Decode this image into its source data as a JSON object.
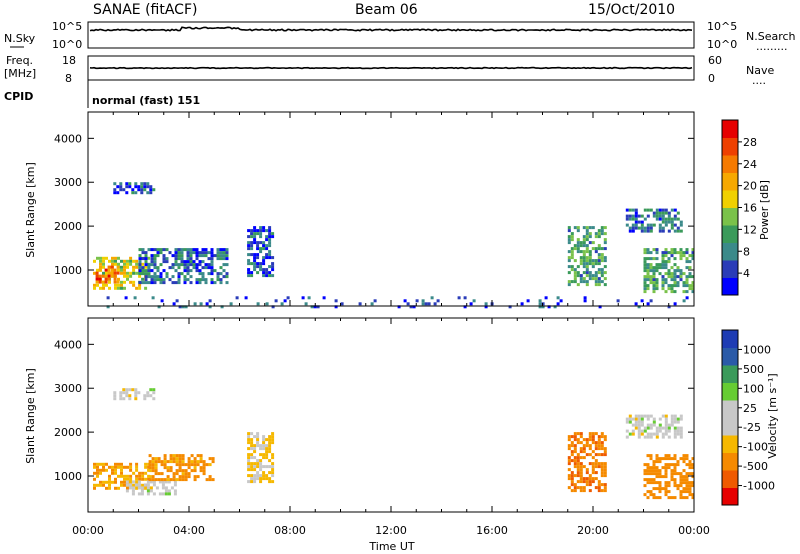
{
  "header": {
    "station": "SANAE (fitACF)",
    "beam": "Beam 06",
    "date": "15/Oct/2010"
  },
  "panels": {
    "nsky_label": "N.Sky",
    "nsearch_label": "N.Search",
    "nsearch_style": ".........",
    "freq_label_line1": "Freq.",
    "freq_label_line2": "[MHz]",
    "nave_label": "Nave",
    "nave_style": "....",
    "cpid_label": "CPID",
    "cpid_value": "normal (fast) 151",
    "noise_left_ticks": [
      "10^5",
      "10^0"
    ],
    "noise_right_ticks": [
      "10^5",
      "10^0"
    ],
    "freq_ticks": [
      "18",
      "8"
    ],
    "nave_ticks": [
      "60",
      "0"
    ]
  },
  "colors": {
    "power_scale": [
      "#0000ff",
      "#2a3cb8",
      "#3b8a8a",
      "#3a9a5a",
      "#7ac24a",
      "#f0d000",
      "#f6a800",
      "#f57a00",
      "#ee4000",
      "#e60000"
    ],
    "velocity_scale": [
      "#e60000",
      "#ef5a00",
      "#f58a00",
      "#f6b800",
      "#c8c8c8",
      "#c8c8c8",
      "#66cc33",
      "#3a9a5a",
      "#2a5aa8",
      "#1e3cb4"
    ]
  },
  "chart_data": [
    {
      "type": "heatmap",
      "name": "power",
      "ylabel": "Slant Range [km]",
      "xlabel": "",
      "x_ticks": [],
      "y_ticks": [
        "1000",
        "2000",
        "3000",
        "4000"
      ],
      "ylim": [
        180,
        4600
      ],
      "xlim": [
        0,
        24
      ],
      "colorbar_label": "Power [dB]",
      "colorbar_ticks": [
        "4",
        "8",
        "12",
        "16",
        "20",
        "24",
        "28"
      ],
      "colorbar_range": [
        0,
        30
      ],
      "regions": [
        {
          "x": [
            0.2,
            2.4
          ],
          "y": [
            600,
            1300
          ],
          "value": 16
        },
        {
          "x": [
            0.3,
            1.2
          ],
          "y": [
            700,
            1100
          ],
          "value": 24
        },
        {
          "x": [
            2.0,
            5.5
          ],
          "y": [
            700,
            1500
          ],
          "value": 6
        },
        {
          "x": [
            1.0,
            2.6
          ],
          "y": [
            2750,
            3000
          ],
          "value": 5
        },
        {
          "x": [
            6.3,
            7.3
          ],
          "y": [
            900,
            2000
          ],
          "value": 5
        },
        {
          "x": [
            19.0,
            20.5
          ],
          "y": [
            700,
            2000
          ],
          "value": 10
        },
        {
          "x": [
            21.3,
            23.5
          ],
          "y": [
            1900,
            2400
          ],
          "value": 7
        },
        {
          "x": [
            22.0,
            24.0
          ],
          "y": [
            500,
            1500
          ],
          "value": 10
        },
        {
          "x": [
            0.5,
            24.0
          ],
          "y": [
            180,
            400
          ],
          "value": 4
        }
      ]
    },
    {
      "type": "heatmap",
      "name": "velocity",
      "ylabel": "Slant Range [km]",
      "xlabel": "Time UT",
      "x_ticks": [
        "00:00",
        "04:00",
        "08:00",
        "12:00",
        "16:00",
        "20:00",
        "00:00"
      ],
      "y_ticks": [
        "1000",
        "2000",
        "3000",
        "4000"
      ],
      "ylim": [
        180,
        4600
      ],
      "xlim": [
        0,
        24
      ],
      "colorbar_label": "Velocity [m s⁻¹]",
      "colorbar_ticks": [
        "-1000",
        "-500",
        "-100",
        "-25",
        "25",
        "100",
        "500",
        "1000"
      ],
      "regions": [
        {
          "x": [
            0.2,
            2.4
          ],
          "y": [
            700,
            1300
          ],
          "value": -100
        },
        {
          "x": [
            1.5,
            3.5
          ],
          "y": [
            600,
            900
          ],
          "value": 0
        },
        {
          "x": [
            2.4,
            5.0
          ],
          "y": [
            900,
            1500
          ],
          "value": -150
        },
        {
          "x": [
            1.0,
            2.6
          ],
          "y": [
            2750,
            3000
          ],
          "value": 0
        },
        {
          "x": [
            6.3,
            7.3
          ],
          "y": [
            900,
            2000
          ],
          "value": -30
        },
        {
          "x": [
            19.0,
            20.5
          ],
          "y": [
            700,
            2000
          ],
          "value": -400
        },
        {
          "x": [
            21.3,
            23.5
          ],
          "y": [
            1900,
            2400
          ],
          "value": 0
        },
        {
          "x": [
            22.0,
            24.0
          ],
          "y": [
            500,
            1500
          ],
          "value": -300
        }
      ]
    }
  ]
}
